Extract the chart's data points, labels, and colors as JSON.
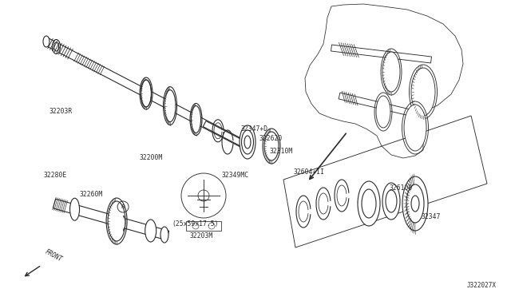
{
  "bg_color": "#ffffff",
  "line_color": "#2a2a2a",
  "diagram_id": "J322027X",
  "figsize": [
    6.4,
    3.72
  ],
  "dpi": 100,
  "xlim": [
    0,
    640
  ],
  "ylim": [
    0,
    372
  ]
}
